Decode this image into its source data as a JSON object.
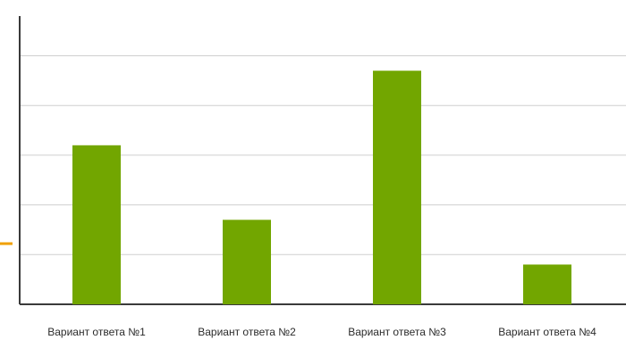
{
  "chart_data": {
    "type": "bar",
    "categories": [
      "Вариант ответа №1",
      "Вариант ответа №2",
      "Вариант ответа №3",
      "Вариант ответа №4"
    ],
    "values": [
      3.2,
      1.7,
      4.7,
      0.8
    ],
    "ylim": [
      0,
      5.8
    ],
    "y_grid_step": 1,
    "grid": true,
    "legend": "none",
    "title": "",
    "xlabel": "",
    "ylabel": ""
  },
  "colors": {
    "bar": "#72a600",
    "grid": "#cfcfcf",
    "axis": "#3a3a3a",
    "accent_mark": "#f0a000"
  }
}
